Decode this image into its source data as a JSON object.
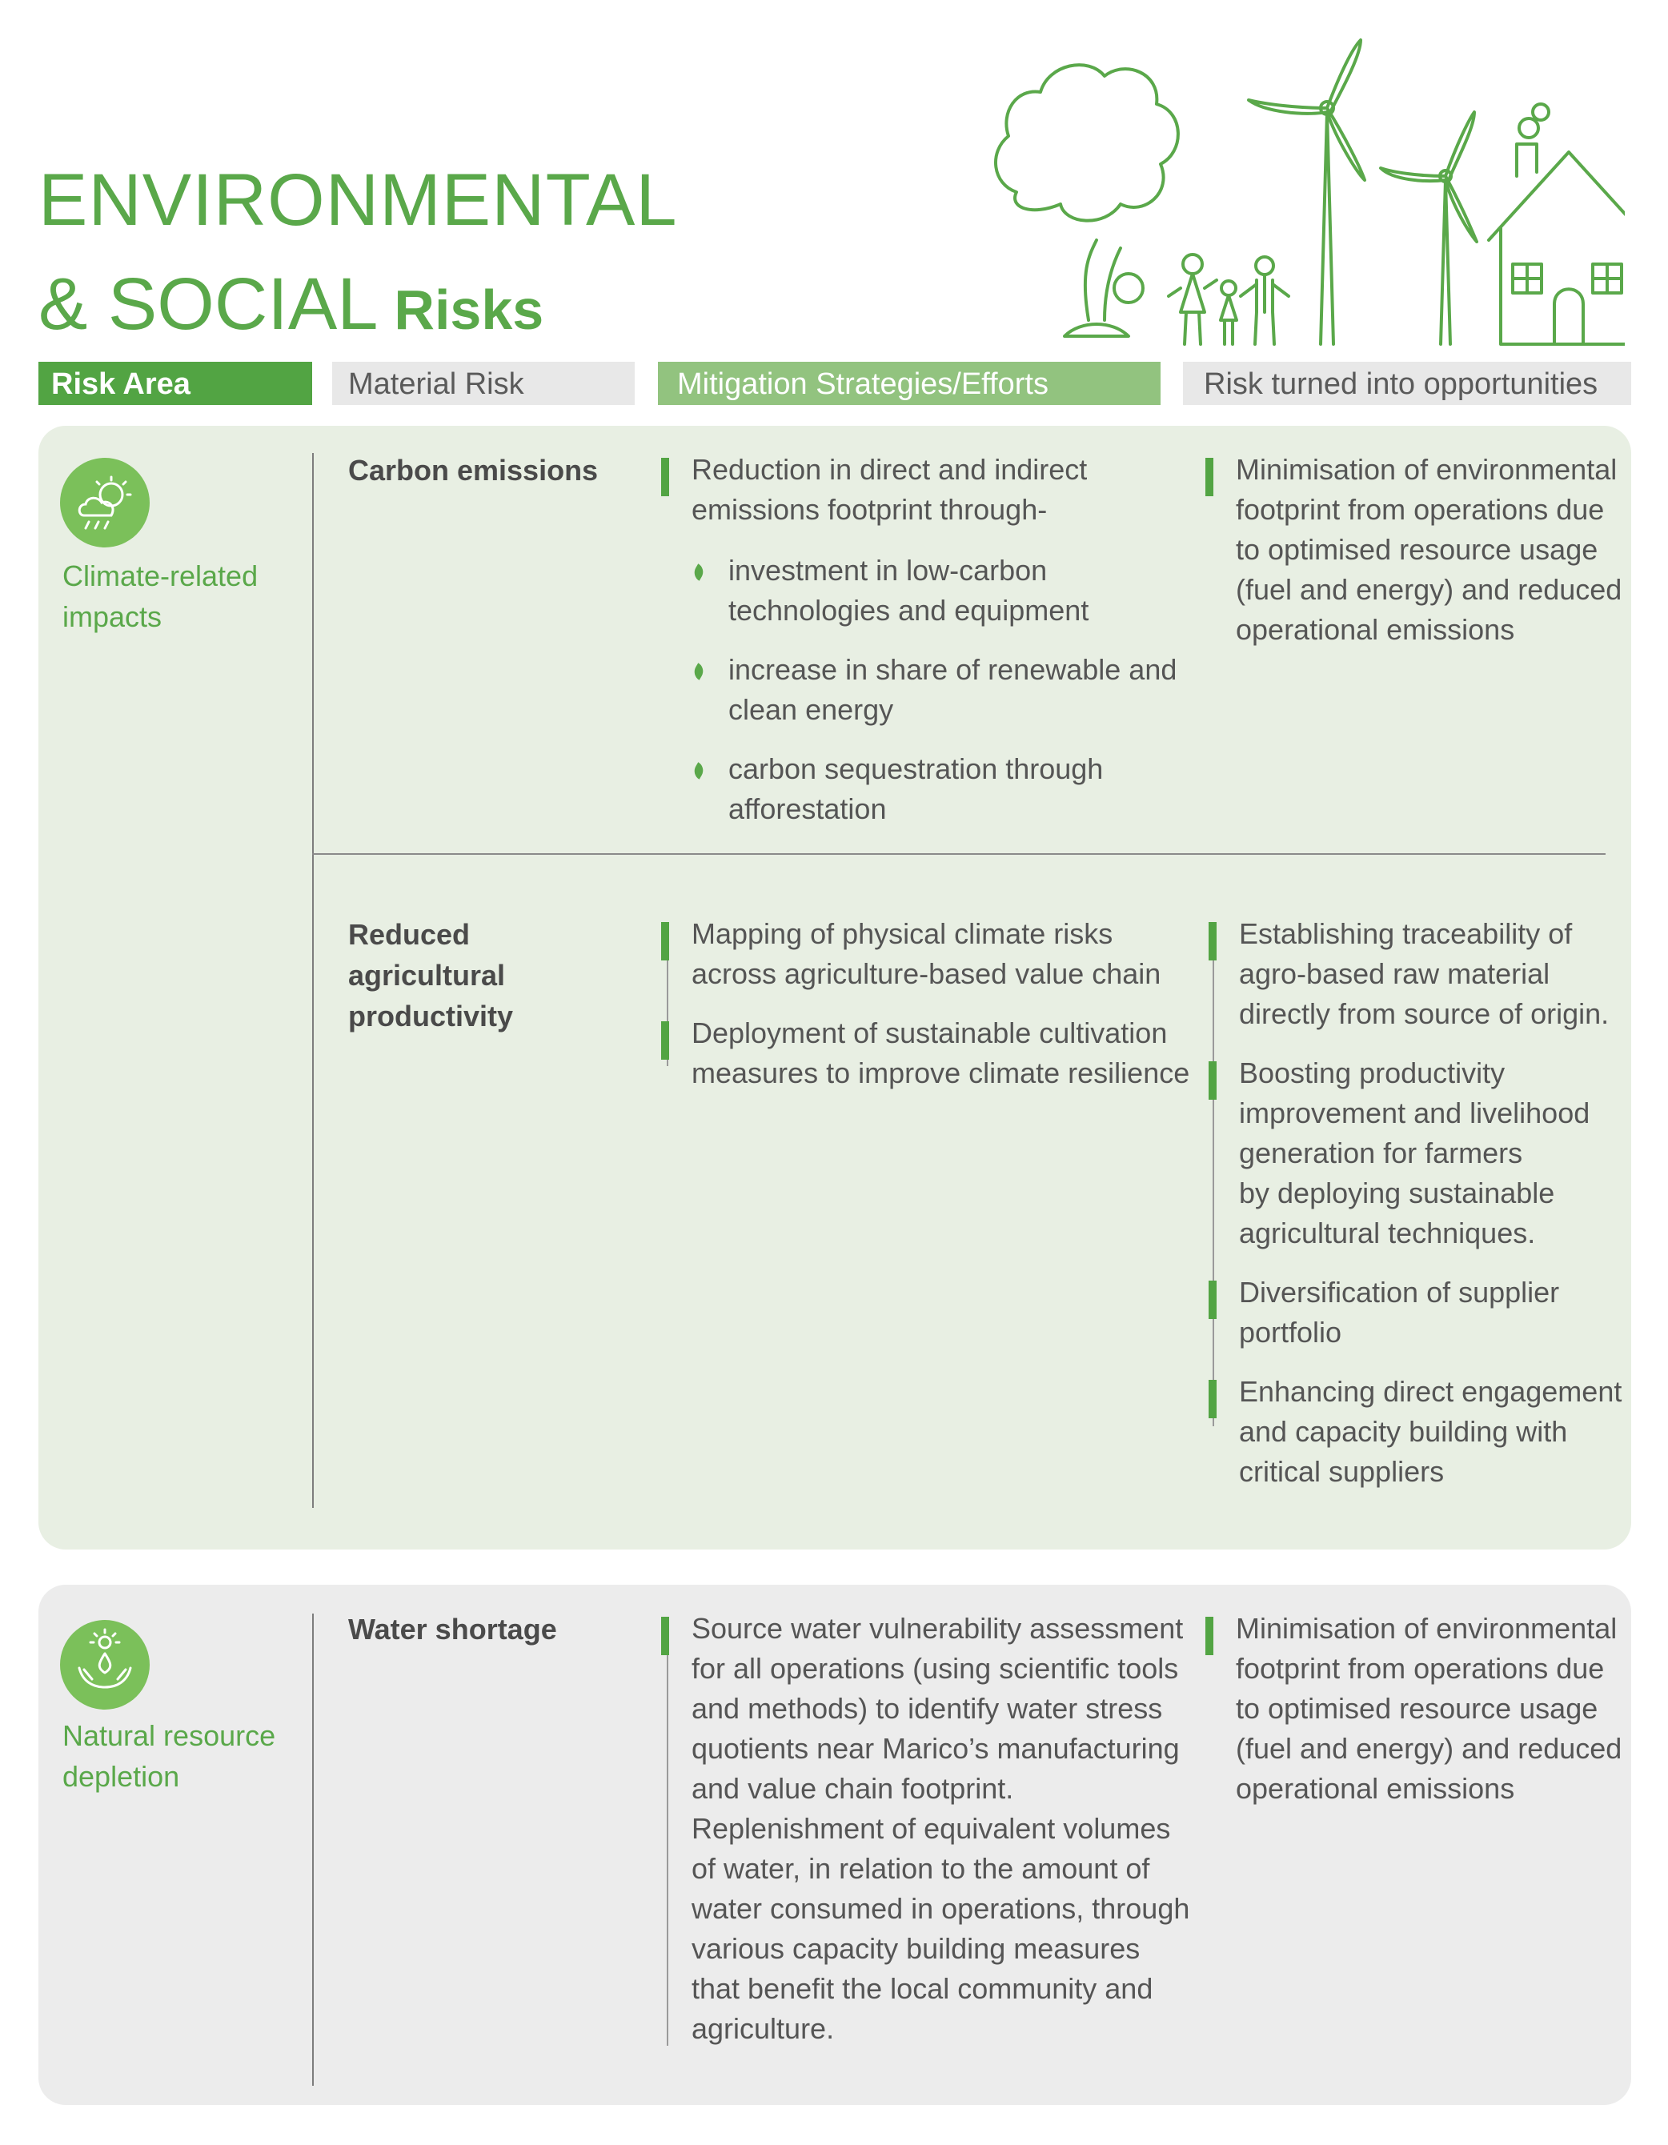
{
  "title": {
    "line1": "ENVIRONMENTAL",
    "line2": "& SOCIAL",
    "bold": "Risks"
  },
  "headers": [
    "Risk Area",
    "Material Risk",
    "Mitigation Strategies/Efforts",
    "Risk turned into opportunities"
  ],
  "section1": {
    "area": "Climate-related impacts",
    "area_lines": [
      "Climate-related",
      "impacts"
    ],
    "risk1": {
      "name": "Carbon emissions",
      "mitigation_intro": [
        "Reduction in direct and indirect",
        "emissions footprint through-"
      ],
      "sub_items": [
        [
          "investment in low-carbon",
          "technologies and equipment"
        ],
        [
          "increase in share of renewable and",
          "clean energy"
        ],
        [
          "carbon sequestration through",
          "afforestation"
        ]
      ],
      "opportunity": [
        "Minimisation of environmental",
        "footprint from operations due",
        "to optimised resource usage",
        "(fuel and energy) and reduced",
        "operational emissions"
      ]
    },
    "risk2": {
      "name_lines": [
        "Reduced",
        "agricultural",
        "productivity"
      ],
      "mitigation": [
        [
          "Mapping of physical climate risks",
          "across agriculture-based value chain"
        ],
        [
          "Deployment of sustainable cultivation",
          "measures to improve climate resilience"
        ]
      ],
      "opportunities": [
        [
          "Establishing traceability of",
          "agro-based raw material",
          "directly from source of origin."
        ],
        [
          "Boosting productivity",
          "improvement and livelihood",
          "generation for farmers",
          "by deploying sustainable",
          "agricultural techniques."
        ],
        [
          "Diversification of supplier",
          "portfolio"
        ],
        [
          "Enhancing direct engagement",
          "and capacity building with",
          "critical suppliers"
        ]
      ]
    }
  },
  "section2": {
    "area_lines": [
      "Natural resource",
      "depletion"
    ],
    "risk": "Water shortage",
    "mitigation": [
      "Source water vulnerability assessment",
      "for all operations (using scientific tools",
      "and methods) to identify water stress",
      "quotients near Marico’s manufacturing",
      "and value chain footprint.",
      "Replenishment of equivalent volumes",
      "of water, in relation to the amount of",
      "water consumed in operations, through",
      "various capacity building measures",
      "that benefit the local community and",
      "agriculture."
    ],
    "opportunity": [
      "Minimisation of environmental",
      "footprint from operations due",
      "to optimised resource usage",
      "(fuel and energy) and reduced",
      "operational emissions"
    ]
  },
  "colors": {
    "green": "#52a443",
    "light_green_panel": "#e8efe3",
    "grey_panel": "#ececec"
  },
  "icons": [
    "climate-icon",
    "water-hands-icon",
    "leaf-bullet-icon"
  ]
}
